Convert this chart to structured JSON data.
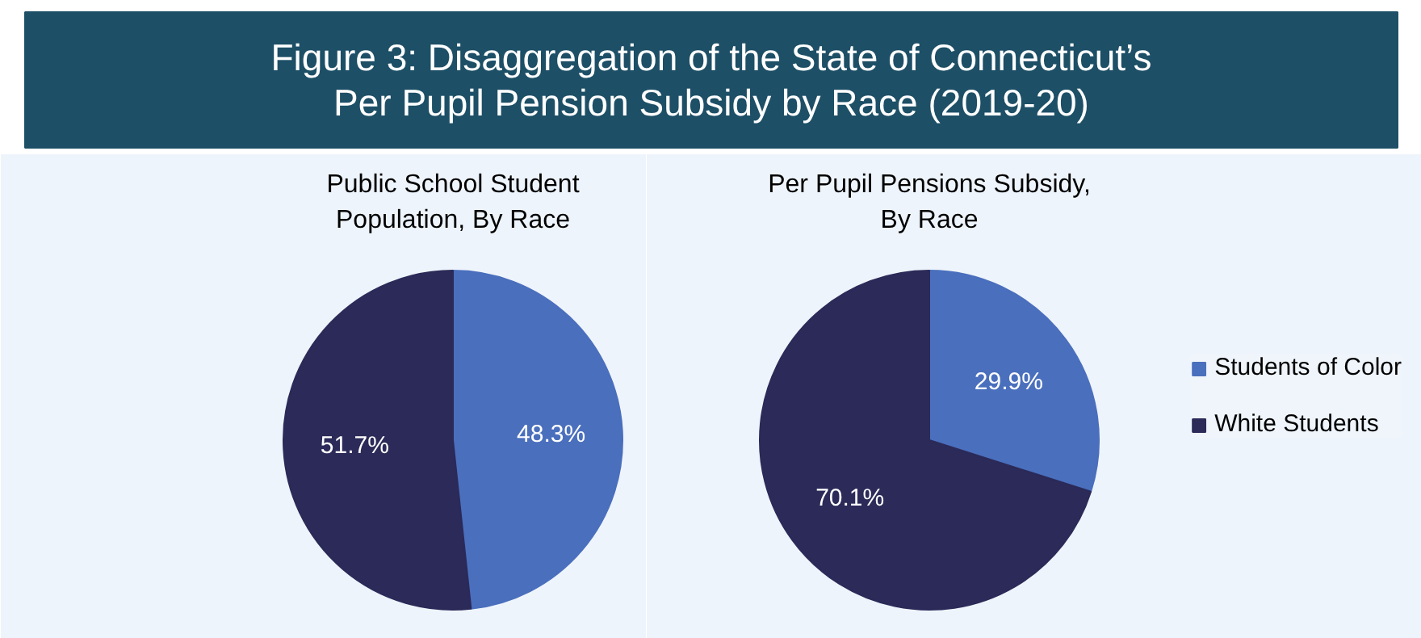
{
  "chart_data": [
    {
      "type": "pie",
      "title": "Figure 3: Disaggregation of the State of Connecticut’s Per Pupil Pension Subsidy by Race (2019-20)",
      "subtitle": "Public School Student Population, By Race",
      "categories": [
        "Students of Color",
        "White Students"
      ],
      "values": [
        48.3,
        51.7
      ],
      "value_labels": [
        "48.3%",
        "51.7%"
      ],
      "colors": [
        "#4a6fbd",
        "#2b2a58"
      ],
      "legend": "right"
    },
    {
      "type": "pie",
      "subtitle": "Per Pupil Pensions Subsidy, By Race",
      "categories": [
        null,
        null
      ],
      "values": [
        29.9,
        70.1
      ],
      "value_labels": [
        "29.9%",
        "70.1%"
      ],
      "colors": [
        "#4a6fbd",
        "#2b2a58"
      ]
    }
  ]
}
